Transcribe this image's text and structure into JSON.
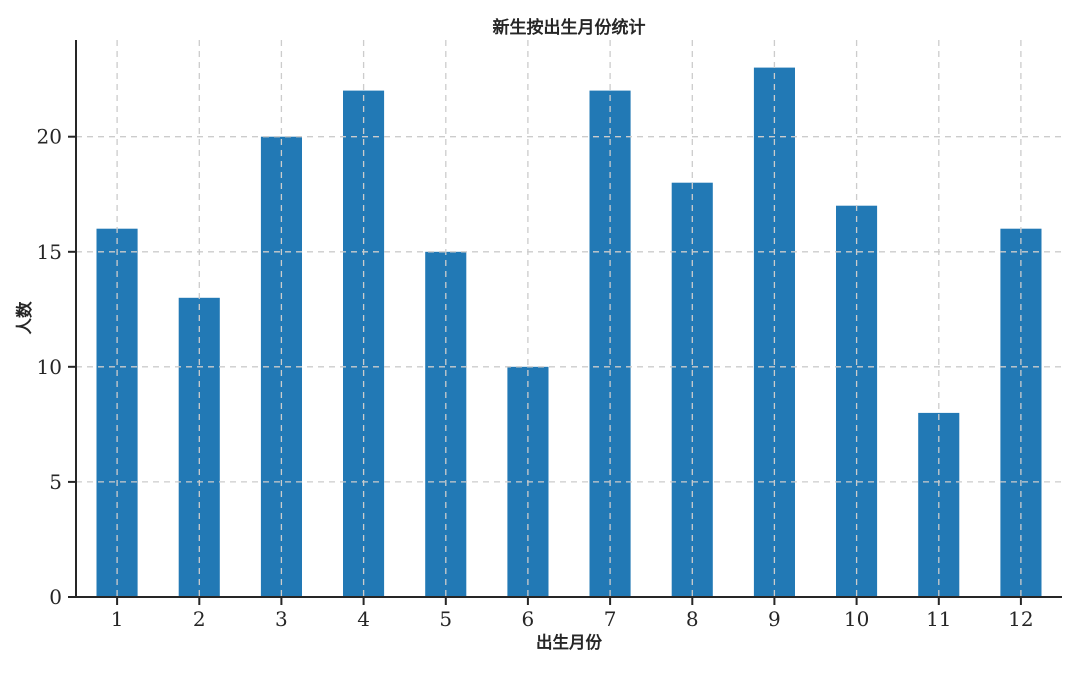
{
  "figure": {
    "background": "#ffffff"
  },
  "chart_data": {
    "type": "bar",
    "title": "新生按出生月份统计",
    "xlabel": "出生月份",
    "ylabel": "人数",
    "categories": [
      "1",
      "2",
      "3",
      "4",
      "5",
      "6",
      "7",
      "8",
      "9",
      "10",
      "11",
      "12"
    ],
    "values": [
      16,
      13,
      20,
      22,
      15,
      10,
      22,
      18,
      23,
      17,
      8,
      16
    ],
    "yticks": [
      0,
      5,
      10,
      15,
      20
    ],
    "ylim": [
      0,
      24.2
    ],
    "bar_color": "#2279b5",
    "grid": true,
    "grid_style": "dashed",
    "grid_color": "#cccccc",
    "axis_color": "#262626",
    "text_color": "#262626",
    "legend_position": "none",
    "bar_width_fraction": 0.5
  }
}
